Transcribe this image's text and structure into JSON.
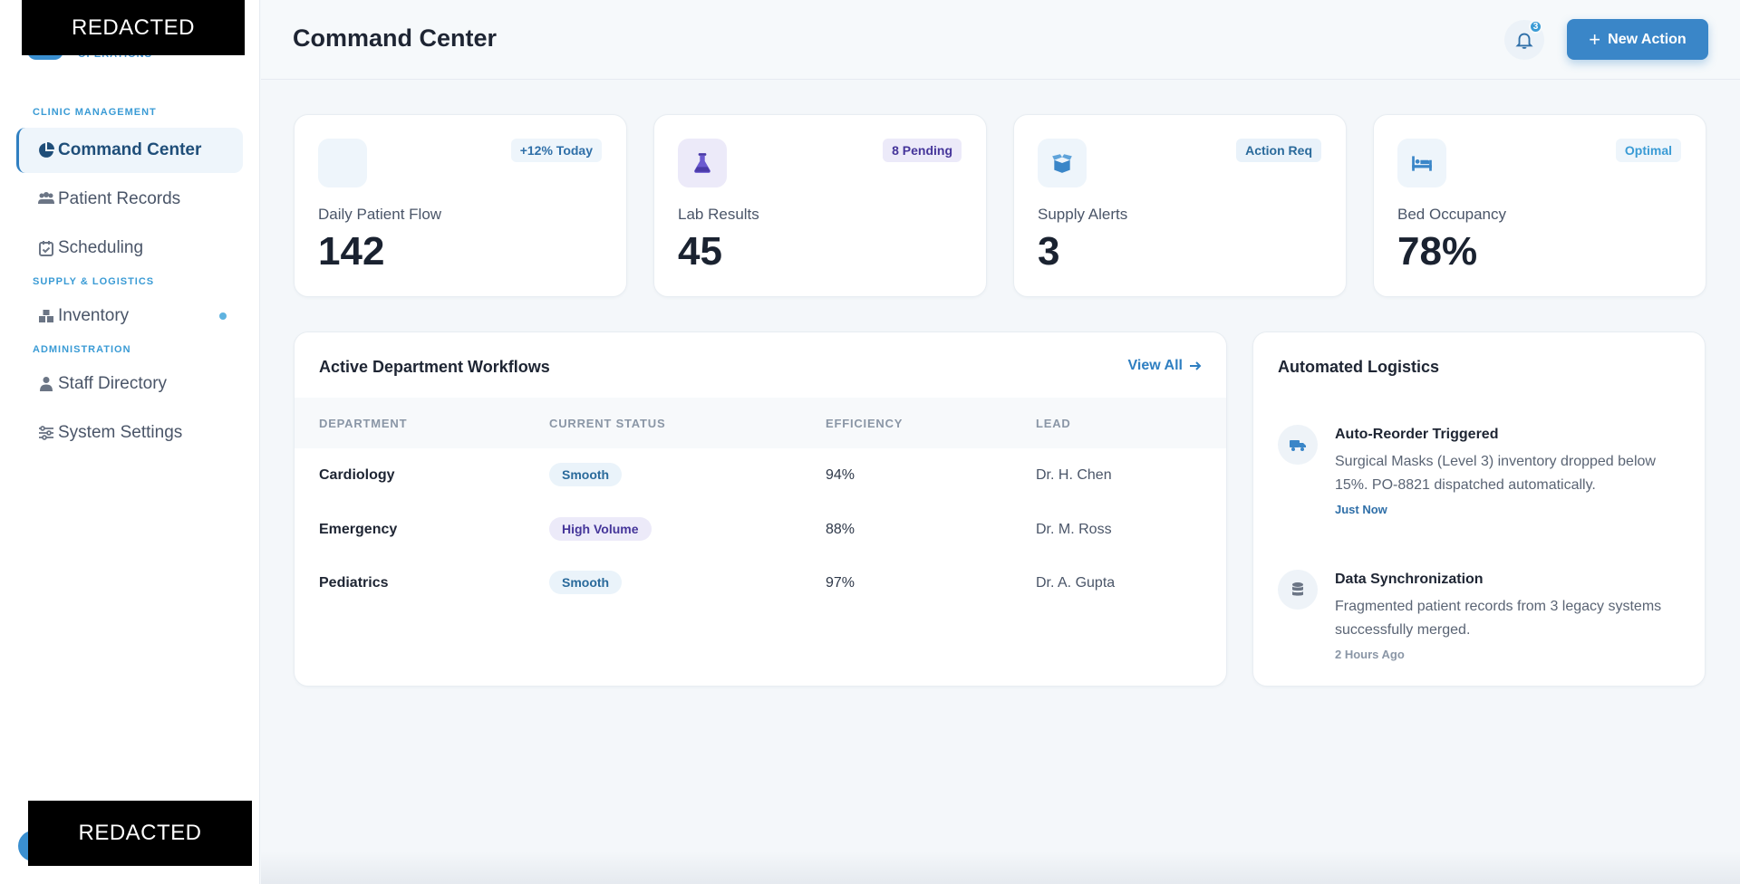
{
  "sidebar": {
    "brand_top": "REDACTED",
    "brand_sub": "OPERATIONS",
    "bottom_redacted": "REDACTED",
    "sections": [
      {
        "label": "CLINIC MANAGEMENT"
      },
      {
        "label": "SUPPLY & LOGISTICS"
      },
      {
        "label": "ADMINISTRATION"
      }
    ],
    "items": [
      {
        "label": "Command Center",
        "icon": "pie-chart-icon",
        "active": true
      },
      {
        "label": "Patient Records",
        "icon": "users-icon"
      },
      {
        "label": "Scheduling",
        "icon": "calendar-check-icon"
      },
      {
        "label": "Inventory",
        "icon": "boxes-icon"
      },
      {
        "label": "Staff Directory",
        "icon": "user-tie-icon"
      },
      {
        "label": "System Settings",
        "icon": "sliders-icon"
      }
    ]
  },
  "header": {
    "title": "Command Center",
    "notification_count": "3",
    "new_action_label": "New Action"
  },
  "stats": [
    {
      "label": "Daily Patient Flow",
      "value": "142",
      "badge": "+12% Today",
      "icon": "blank-icon"
    },
    {
      "label": "Lab Results",
      "value": "45",
      "badge": "8 Pending",
      "icon": "flask-icon"
    },
    {
      "label": "Supply Alerts",
      "value": "3",
      "badge": "Action Req",
      "icon": "box-open-icon"
    },
    {
      "label": "Bed Occupancy",
      "value": "78%",
      "badge": "Optimal",
      "icon": "bed-icon"
    }
  ],
  "workflows": {
    "title": "Active Department Workflows",
    "view_all": "View All",
    "columns": [
      "DEPARTMENT",
      "CURRENT STATUS",
      "EFFICIENCY",
      "LEAD"
    ],
    "rows": [
      {
        "department": "Cardiology",
        "status": "Smooth",
        "efficiency": "94%",
        "lead": "Dr. H. Chen"
      },
      {
        "department": "Emergency",
        "status": "High Volume",
        "efficiency": "88%",
        "lead": "Dr. M. Ross"
      },
      {
        "department": "Pediatrics",
        "status": "Smooth",
        "efficiency": "97%",
        "lead": "Dr. A. Gupta"
      }
    ]
  },
  "logistics": {
    "title": "Automated Logistics",
    "items": [
      {
        "title": "Auto-Reorder Triggered",
        "text": "Surgical Masks (Level 3) inventory dropped below 15%. PO-8821 dispatched automatically.",
        "time": "Just Now",
        "icon": "truck-icon"
      },
      {
        "title": "Data Synchronization",
        "text": "Fragmented patient records from 3 legacy systems successfully merged.",
        "time": "2 Hours Ago",
        "icon": "database-icon"
      }
    ]
  },
  "colors": {
    "accent": "#3a86c8",
    "section_label": "#3a9bd5",
    "pill_smooth": "#eaf3fa",
    "pill_high_volume": "#eceaf9"
  }
}
